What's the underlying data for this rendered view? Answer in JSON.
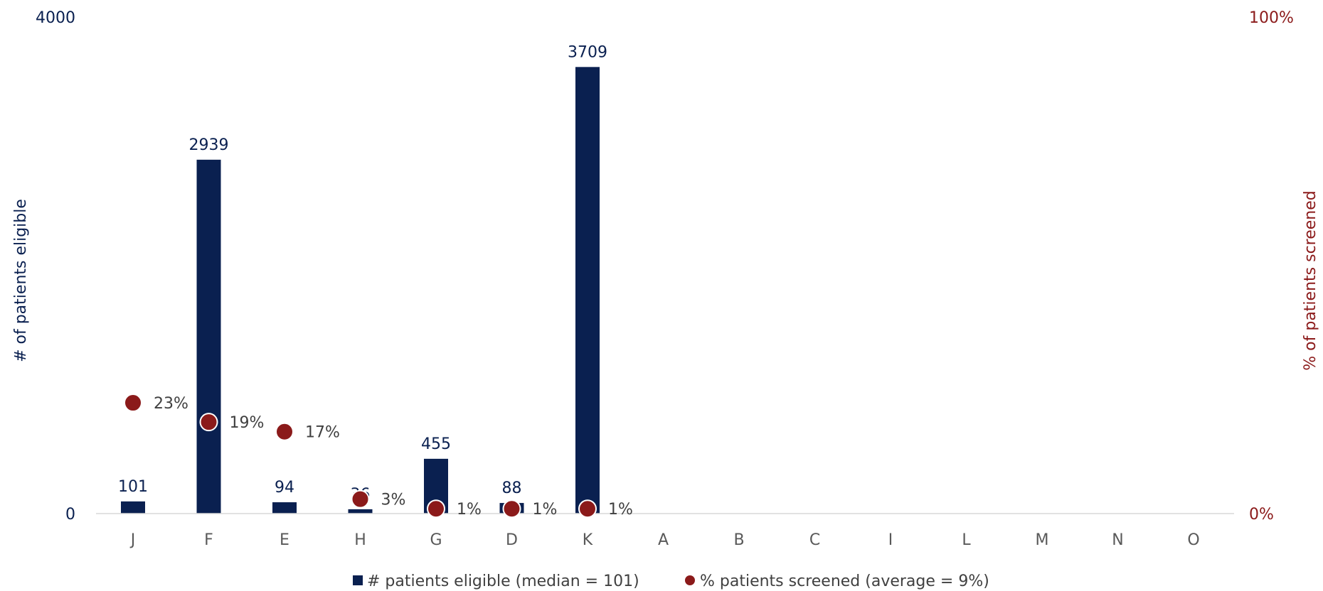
{
  "chart_data": {
    "type": "bar",
    "categories": [
      "J",
      "F",
      "E",
      "H",
      "G",
      "D",
      "K",
      "A",
      "B",
      "C",
      "I",
      "L",
      "M",
      "N",
      "O"
    ],
    "series": [
      {
        "name": "# patients eligible (median = 101)",
        "kind": "bar",
        "axis": "left",
        "values": [
          101,
          2939,
          94,
          36,
          455,
          88,
          3709,
          null,
          null,
          null,
          null,
          null,
          null,
          null,
          null
        ],
        "labels": [
          "101",
          "2939",
          "94",
          "36",
          "455",
          "88",
          "3709"
        ],
        "color": "#0a2050"
      },
      {
        "name": "% patients screened (average = 9%)",
        "kind": "scatter",
        "axis": "right",
        "values": [
          23,
          19,
          17,
          3,
          1,
          1,
          1,
          null,
          null,
          null,
          null,
          null,
          null,
          null,
          null
        ],
        "labels": [
          "23%",
          "19%",
          "17%",
          "3%",
          "1%",
          "1%",
          "1%"
        ],
        "color": "#8b1a1a"
      }
    ],
    "ylabel": "# of patients eligible",
    "ylabel_right": "% of patients screened",
    "ylim": [
      0,
      4000
    ],
    "ylim_right": [
      0,
      100
    ],
    "y_ticks": [
      "0",
      "4000"
    ],
    "y_ticks_right": [
      "0%",
      "100%"
    ],
    "legend_position": "bottom",
    "grid": false
  },
  "colors": {
    "bar": "#0a2050",
    "point": "#8b1a1a",
    "axis_line": "#d9d9d9"
  }
}
